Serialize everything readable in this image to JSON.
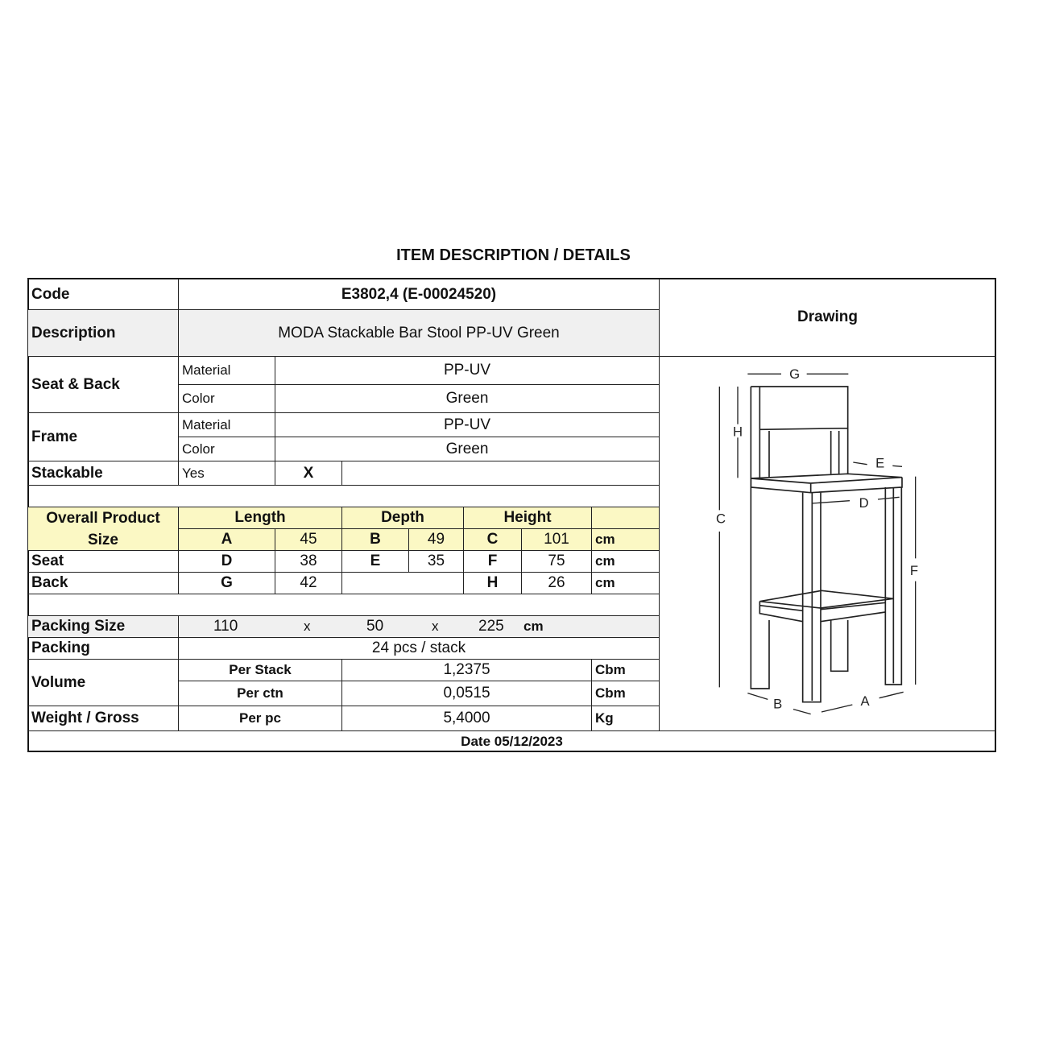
{
  "title": "ITEM DESCRIPTION / DETAILS",
  "code": {
    "label": "Code",
    "value": "E3802,4 (E-00024520)"
  },
  "description": {
    "label": "Description",
    "value": "MODA Stackable Bar Stool PP-UV Green"
  },
  "drawing_label": "Drawing",
  "seat_back": {
    "label": "Seat & Back",
    "material_label": "Material",
    "material": "PP-UV",
    "color_label": "Color",
    "color": "Green"
  },
  "frame": {
    "label": "Frame",
    "material_label": "Material",
    "material": "PP-UV",
    "color_label": "Color",
    "color": "Green"
  },
  "stackable": {
    "label": "Stackable",
    "yes_label": "Yes",
    "mark": "X"
  },
  "dimensions": {
    "header": {
      "label": "Overall Product Size",
      "length": "Length",
      "depth": "Depth",
      "height": "Height"
    },
    "overall": {
      "l_key": "A",
      "l": "45",
      "d_key": "B",
      "d": "49",
      "h_key": "C",
      "h": "101",
      "unit": "cm"
    },
    "seat": {
      "label": "Seat",
      "l_key": "D",
      "l": "38",
      "d_key": "E",
      "d": "35",
      "h_key": "F",
      "h": "75",
      "unit": "cm"
    },
    "back": {
      "label": "Back",
      "l_key": "G",
      "l": "42",
      "h_key": "H",
      "h": "26",
      "unit": "cm"
    }
  },
  "packing_size": {
    "label": "Packing Size",
    "x": "110",
    "sep1": "x",
    "y": "50",
    "sep2": "x",
    "z": "225",
    "unit": "cm"
  },
  "packing": {
    "label": "Packing",
    "value": "24 pcs / stack"
  },
  "volume": {
    "label": "Volume",
    "per_stack_label": "Per Stack",
    "per_stack": "1,2375",
    "per_ctn_label": "Per ctn",
    "per_ctn": "0,0515",
    "unit": "Cbm"
  },
  "weight": {
    "label": "Weight / Gross",
    "per_pc_label": "Per pc",
    "value": "5,4000",
    "unit": "Kg"
  },
  "date": "Date 05/12/2023",
  "drawing_labels": {
    "a": "A",
    "b": "B",
    "c": "C",
    "d": "D",
    "e": "E",
    "f": "F",
    "g": "G",
    "h": "H"
  },
  "colors": {
    "header_fill": "#fbf8c4",
    "shaded_fill": "#f0f0f0"
  }
}
